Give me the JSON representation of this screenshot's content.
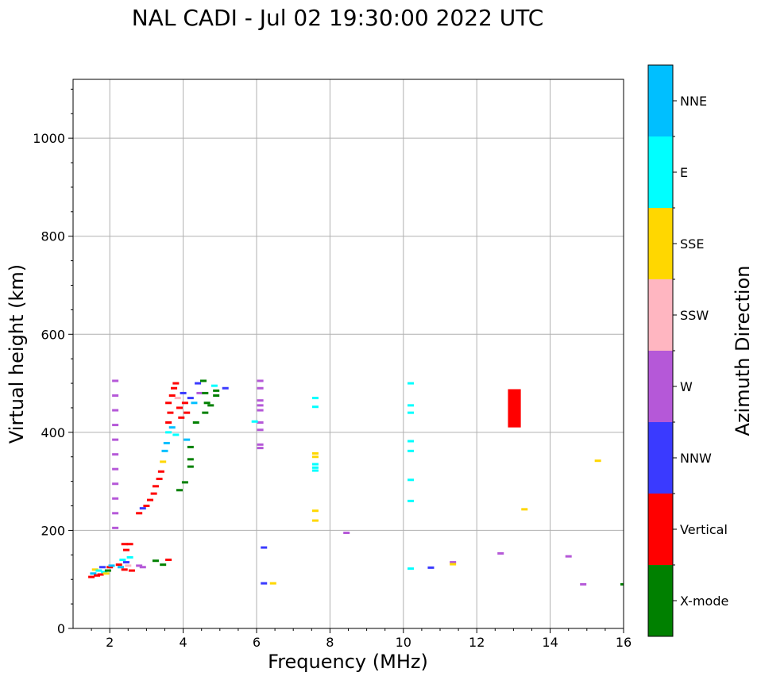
{
  "chart_data": {
    "type": "scatter",
    "title": "NAL CADI - Jul 02 19:30:00 2022 UTC",
    "xlabel": "Frequency (MHz)",
    "ylabel": "Virtual height (km)",
    "xlim": [
      1,
      16
    ],
    "ylim": [
      0,
      1120
    ],
    "xticks": [
      2,
      4,
      6,
      8,
      10,
      12,
      14,
      16
    ],
    "yticks": [
      0,
      200,
      400,
      600,
      800,
      1000
    ],
    "grid": true,
    "colorbar": {
      "title": "Azimuth Direction",
      "categories": [
        {
          "label": "X-mode",
          "color": "#008000"
        },
        {
          "label": "Vertical",
          "color": "#ff0000"
        },
        {
          "label": "NNW",
          "color": "#3a3aff"
        },
        {
          "label": "W",
          "color": "#b558d8"
        },
        {
          "label": "SSW",
          "color": "#ffb6c1"
        },
        {
          "label": "SSE",
          "color": "#ffd700"
        },
        {
          "label": "E",
          "color": "#00ffff"
        },
        {
          "label": "NNE",
          "color": "#00bfff"
        }
      ]
    },
    "points": [
      {
        "f": 1.5,
        "h": 105,
        "c": "Vertical"
      },
      {
        "f": 1.55,
        "h": 112,
        "c": "NNE"
      },
      {
        "f": 1.6,
        "h": 120,
        "c": "SSE"
      },
      {
        "f": 1.65,
        "h": 108,
        "c": "Vertical"
      },
      {
        "f": 1.7,
        "h": 118,
        "c": "E"
      },
      {
        "f": 1.75,
        "h": 110,
        "c": "Vertical"
      },
      {
        "f": 1.8,
        "h": 125,
        "c": "NNW"
      },
      {
        "f": 1.85,
        "h": 115,
        "c": "E"
      },
      {
        "f": 1.9,
        "h": 112,
        "c": "SSE"
      },
      {
        "f": 1.95,
        "h": 118,
        "c": "X-mode"
      },
      {
        "f": 2.0,
        "h": 125,
        "c": "Vertical"
      },
      {
        "f": 2.05,
        "h": 128,
        "c": "NNE"
      },
      {
        "f": 2.25,
        "h": 130,
        "c": "Vertical"
      },
      {
        "f": 2.3,
        "h": 125,
        "c": "NNE"
      },
      {
        "f": 2.35,
        "h": 140,
        "c": "E"
      },
      {
        "f": 2.4,
        "h": 120,
        "c": "Vertical"
      },
      {
        "f": 2.45,
        "h": 135,
        "c": "NNW"
      },
      {
        "f": 2.5,
        "h": 128,
        "c": "SSW"
      },
      {
        "f": 2.55,
        "h": 145,
        "c": "E"
      },
      {
        "f": 2.6,
        "h": 118,
        "c": "Vertical"
      },
      {
        "f": 2.4,
        "h": 172,
        "c": "Vertical"
      },
      {
        "f": 2.55,
        "h": 172,
        "c": "Vertical"
      },
      {
        "f": 2.45,
        "h": 160,
        "c": "Vertical"
      },
      {
        "f": 2.8,
        "h": 128,
        "c": "W"
      },
      {
        "f": 2.9,
        "h": 125,
        "c": "W"
      },
      {
        "f": 3.25,
        "h": 138,
        "c": "X-mode"
      },
      {
        "f": 3.45,
        "h": 130,
        "c": "X-mode"
      },
      {
        "f": 3.6,
        "h": 140,
        "c": "Vertical"
      },
      {
        "f": 2.15,
        "h": 505,
        "c": "W"
      },
      {
        "f": 2.15,
        "h": 475,
        "c": "W"
      },
      {
        "f": 2.15,
        "h": 445,
        "c": "W"
      },
      {
        "f": 2.15,
        "h": 415,
        "c": "W"
      },
      {
        "f": 2.15,
        "h": 385,
        "c": "W"
      },
      {
        "f": 2.15,
        "h": 355,
        "c": "W"
      },
      {
        "f": 2.15,
        "h": 325,
        "c": "W"
      },
      {
        "f": 2.15,
        "h": 295,
        "c": "W"
      },
      {
        "f": 2.15,
        "h": 265,
        "c": "W"
      },
      {
        "f": 2.15,
        "h": 235,
        "c": "W"
      },
      {
        "f": 2.15,
        "h": 205,
        "c": "W"
      },
      {
        "f": 2.8,
        "h": 235,
        "c": "Vertical"
      },
      {
        "f": 2.9,
        "h": 245,
        "c": "NNW"
      },
      {
        "f": 3.0,
        "h": 250,
        "c": "Vertical"
      },
      {
        "f": 3.1,
        "h": 262,
        "c": "Vertical"
      },
      {
        "f": 3.2,
        "h": 275,
        "c": "Vertical"
      },
      {
        "f": 3.25,
        "h": 290,
        "c": "Vertical"
      },
      {
        "f": 3.35,
        "h": 305,
        "c": "Vertical"
      },
      {
        "f": 3.4,
        "h": 320,
        "c": "Vertical"
      },
      {
        "f": 3.45,
        "h": 340,
        "c": "SSE"
      },
      {
        "f": 3.5,
        "h": 362,
        "c": "NNE"
      },
      {
        "f": 3.55,
        "h": 378,
        "c": "NNE"
      },
      {
        "f": 3.6,
        "h": 400,
        "c": "E"
      },
      {
        "f": 3.7,
        "h": 410,
        "c": "NNE"
      },
      {
        "f": 3.8,
        "h": 395,
        "c": "E"
      },
      {
        "f": 3.6,
        "h": 420,
        "c": "Vertical"
      },
      {
        "f": 3.65,
        "h": 440,
        "c": "Vertical"
      },
      {
        "f": 3.6,
        "h": 460,
        "c": "Vertical"
      },
      {
        "f": 3.7,
        "h": 475,
        "c": "Vertical"
      },
      {
        "f": 3.75,
        "h": 490,
        "c": "Vertical"
      },
      {
        "f": 3.8,
        "h": 500,
        "c": "Vertical"
      },
      {
        "f": 3.85,
        "h": 470,
        "c": "SSW"
      },
      {
        "f": 3.9,
        "h": 450,
        "c": "Vertical"
      },
      {
        "f": 3.95,
        "h": 430,
        "c": "Vertical"
      },
      {
        "f": 4.0,
        "h": 480,
        "c": "NNW"
      },
      {
        "f": 4.05,
        "h": 460,
        "c": "Vertical"
      },
      {
        "f": 4.1,
        "h": 440,
        "c": "Vertical"
      },
      {
        "f": 4.2,
        "h": 470,
        "c": "NNW"
      },
      {
        "f": 4.3,
        "h": 460,
        "c": "NNE"
      },
      {
        "f": 4.4,
        "h": 500,
        "c": "NNW"
      },
      {
        "f": 4.45,
        "h": 480,
        "c": "W"
      },
      {
        "f": 4.35,
        "h": 420,
        "c": "X-mode"
      },
      {
        "f": 4.1,
        "h": 385,
        "c": "NNE"
      },
      {
        "f": 4.55,
        "h": 505,
        "c": "X-mode"
      },
      {
        "f": 4.6,
        "h": 480,
        "c": "X-mode"
      },
      {
        "f": 4.65,
        "h": 460,
        "c": "X-mode"
      },
      {
        "f": 4.6,
        "h": 440,
        "c": "X-mode"
      },
      {
        "f": 4.75,
        "h": 455,
        "c": "X-mode"
      },
      {
        "f": 4.85,
        "h": 495,
        "c": "E"
      },
      {
        "f": 4.9,
        "h": 485,
        "c": "X-mode"
      },
      {
        "f": 4.9,
        "h": 475,
        "c": "X-mode"
      },
      {
        "f": 5.15,
        "h": 490,
        "c": "NNW"
      },
      {
        "f": 4.2,
        "h": 370,
        "c": "X-mode"
      },
      {
        "f": 4.2,
        "h": 345,
        "c": "X-mode"
      },
      {
        "f": 4.2,
        "h": 330,
        "c": "X-mode"
      },
      {
        "f": 4.05,
        "h": 298,
        "c": "X-mode"
      },
      {
        "f": 3.9,
        "h": 282,
        "c": "X-mode"
      },
      {
        "f": 6.1,
        "h": 505,
        "c": "W"
      },
      {
        "f": 6.1,
        "h": 490,
        "c": "W"
      },
      {
        "f": 6.1,
        "h": 465,
        "c": "W"
      },
      {
        "f": 6.1,
        "h": 455,
        "c": "W"
      },
      {
        "f": 6.1,
        "h": 445,
        "c": "W"
      },
      {
        "f": 6.1,
        "h": 420,
        "c": "W"
      },
      {
        "f": 6.1,
        "h": 405,
        "c": "W"
      },
      {
        "f": 6.1,
        "h": 375,
        "c": "W"
      },
      {
        "f": 6.1,
        "h": 368,
        "c": "W"
      },
      {
        "f": 5.95,
        "h": 422,
        "c": "E"
      },
      {
        "f": 6.2,
        "h": 165,
        "c": "NNW"
      },
      {
        "f": 6.2,
        "h": 92,
        "c": "NNW"
      },
      {
        "f": 6.45,
        "h": 92,
        "c": "SSE"
      },
      {
        "f": 7.6,
        "h": 470,
        "c": "E"
      },
      {
        "f": 7.6,
        "h": 452,
        "c": "E"
      },
      {
        "f": 7.6,
        "h": 357,
        "c": "SSE"
      },
      {
        "f": 7.6,
        "h": 350,
        "c": "SSE"
      },
      {
        "f": 7.6,
        "h": 335,
        "c": "E"
      },
      {
        "f": 7.6,
        "h": 328,
        "c": "E"
      },
      {
        "f": 7.6,
        "h": 322,
        "c": "E"
      },
      {
        "f": 7.6,
        "h": 240,
        "c": "SSE"
      },
      {
        "f": 7.6,
        "h": 220,
        "c": "SSE"
      },
      {
        "f": 8.45,
        "h": 195,
        "c": "W"
      },
      {
        "f": 10.2,
        "h": 500,
        "c": "E"
      },
      {
        "f": 10.2,
        "h": 455,
        "c": "E"
      },
      {
        "f": 10.2,
        "h": 440,
        "c": "E"
      },
      {
        "f": 10.2,
        "h": 382,
        "c": "E"
      },
      {
        "f": 10.2,
        "h": 362,
        "c": "E"
      },
      {
        "f": 10.2,
        "h": 303,
        "c": "E"
      },
      {
        "f": 10.2,
        "h": 260,
        "c": "E"
      },
      {
        "f": 10.2,
        "h": 122,
        "c": "E"
      },
      {
        "f": 10.75,
        "h": 124,
        "c": "NNW"
      },
      {
        "f": 11.35,
        "h": 135,
        "c": "W"
      },
      {
        "f": 11.35,
        "h": 131,
        "c": "SSE"
      },
      {
        "f": 12.65,
        "h": 153,
        "c": "W"
      },
      {
        "f": 13.3,
        "h": 243,
        "c": "SSE"
      },
      {
        "f": 14.5,
        "h": 147,
        "c": "W"
      },
      {
        "f": 14.9,
        "h": 90,
        "c": "W"
      },
      {
        "f": 15.3,
        "h": 342,
        "c": "SSE"
      },
      {
        "f": 16.0,
        "h": 90,
        "c": "X-mode"
      }
    ],
    "blocks": [
      {
        "f0": 12.85,
        "f1": 13.2,
        "h0": 410,
        "h1": 488,
        "c": "Vertical"
      }
    ]
  }
}
